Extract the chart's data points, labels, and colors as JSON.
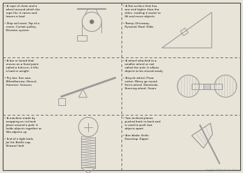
{
  "bg_color": "#e8e4d8",
  "border_color": "#444444",
  "dashed_color": "#666666",
  "text_color": "#111111",
  "draw_color": "#999999",
  "cells": [
    {
      "row": 0,
      "col": 0,
      "lines": [
        "• A rope of chain and a",
        "  wheel around which the",
        "  rope fits; it raises and",
        "  lowers a load",
        "",
        "• Ship sail mast, Top of a",
        "  crane, Curtain pulley,",
        "  Elevator system"
      ],
      "type": "pulley"
    },
    {
      "row": 0,
      "col": 1,
      "lines": [
        "• A flat surface that has",
        "  one end higher than the",
        "  other, making it easier to",
        "  lift and move objects",
        "",
        "• Ramp, Driveway,",
        "  Pyramid, Roof, Slide"
      ],
      "type": "inclined_plane"
    },
    {
      "row": 1,
      "col": 0,
      "lines": [
        "• A bar or board that",
        "  moves on a fixed point",
        "  called a fulcrum, it lifts",
        "  a load or weight",
        "",
        "• Pry bar, See saw,",
        "  Wheelbarrow, Shovel,",
        "  Hammer, Scissors"
      ],
      "type": "lever"
    },
    {
      "row": 1,
      "col": 1,
      "lines": [
        "• A wheel attached to a",
        "  smaller wheel or rod",
        "  called the axle; it allows",
        "  objects to be moved easily",
        "",
        "• Bicycle wheel, Pizza",
        "  cutter, Merry go round,",
        "  Ferris wheel, Doorknob,",
        "  Steering wheel, Gears"
      ],
      "type": "wheel_axle"
    },
    {
      "row": 2,
      "col": 0,
      "lines": [
        "• A machine made by",
        "  wrapping an inclined",
        "  plane around a pole; it",
        "  holds objects together or",
        "  lifts objects up",
        "",
        "• End of a light bulb,",
        "  Jar lid, Bottle cap,",
        "  Shower/ bolt"
      ],
      "type": "screw"
    },
    {
      "row": 2,
      "col": 1,
      "lines": [
        "• Two inclined planes",
        "  pushed back to back and",
        "  is used to push two",
        "  objects apart",
        "",
        "• Axe blade, Knife,",
        "  Doorstop, Zipper"
      ],
      "type": "wedge"
    }
  ]
}
